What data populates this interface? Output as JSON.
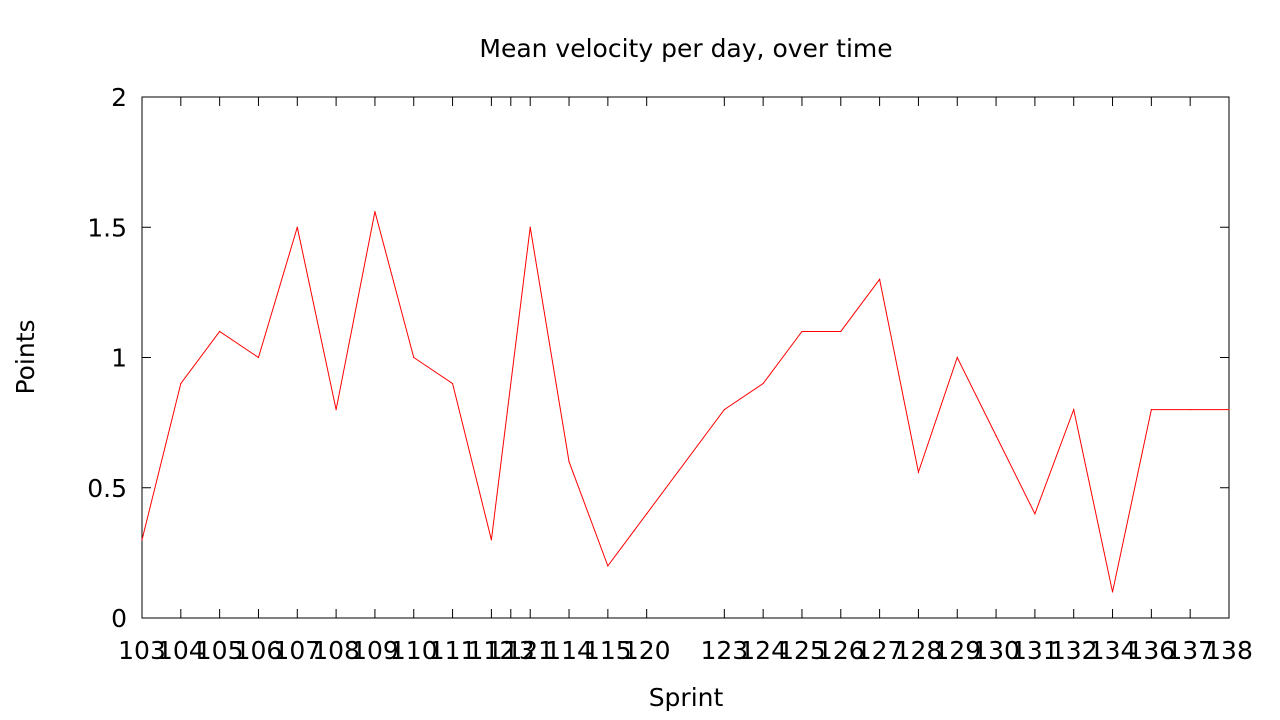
{
  "chart_data": {
    "type": "line",
    "title": "Mean velocity per day, over time",
    "xlabel": "Sprint",
    "ylabel": "Points",
    "ylim": [
      0,
      2
    ],
    "yticks": [
      "0",
      "0.5",
      "1",
      "1.5",
      "2"
    ],
    "grid": false,
    "line_color": "#ff0000",
    "x": [
      103,
      104,
      105,
      106,
      107,
      108,
      109,
      110,
      111,
      112,
      113,
      121,
      114,
      115,
      120,
      123,
      124,
      125,
      126,
      127,
      128,
      129,
      130,
      131,
      132,
      134,
      136,
      137,
      138
    ],
    "x_labels": [
      "103",
      "104",
      "105",
      "106",
      "107",
      "108",
      "109",
      "110",
      "111",
      "112",
      "113",
      "121",
      "114",
      "115",
      "120",
      "123",
      "124",
      "125",
      "126",
      "127",
      "128",
      "129",
      "130",
      "131",
      "132",
      "134",
      "136",
      "137",
      "138"
    ],
    "x_positions": [
      0,
      1,
      2,
      3,
      4,
      5,
      6,
      7,
      8,
      9,
      9.5,
      10,
      11,
      12,
      13,
      15,
      16,
      17,
      18,
      19,
      20,
      21,
      22,
      23,
      24,
      25,
      26,
      27,
      28
    ],
    "series": [
      {
        "values": [
          0.3,
          0.9,
          1.1,
          1.0,
          1.5,
          0.8,
          1.56,
          1.0,
          0.9,
          0.3,
          null,
          1.5,
          0.6,
          0.2,
          0.4,
          0.8,
          0.9,
          1.1,
          1.1,
          1.3,
          0.56,
          1.0,
          0.7,
          0.4,
          0.8,
          0.1,
          0.8,
          0.8,
          0.8
        ]
      }
    ]
  }
}
